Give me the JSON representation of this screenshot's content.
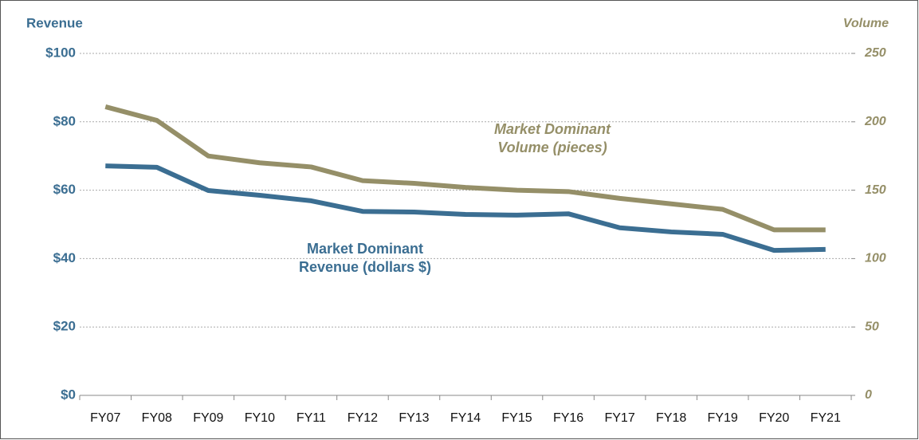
{
  "chart_data": {
    "type": "line",
    "y_label": "Revenue",
    "y2_label": "Volume",
    "categories": [
      "FY07",
      "FY08",
      "FY09",
      "FY10",
      "FY11",
      "FY12",
      "FY13",
      "FY14",
      "FY15",
      "FY16",
      "FY17",
      "FY18",
      "FY19",
      "FY20",
      "FY21"
    ],
    "series": [
      {
        "label_lines": [
          "Market Dominant",
          "Revenue (dollars $)"
        ],
        "color": "#3b6e92",
        "axis": "y",
        "values": [
          67.1,
          66.7,
          59.9,
          58.5,
          56.9,
          53.8,
          53.6,
          52.9,
          52.7,
          53.1,
          49.0,
          47.8,
          47.1,
          42.4,
          42.7
        ]
      },
      {
        "label_lines": [
          "Market Dominant",
          "Volume (pieces)"
        ],
        "color": "#958f68",
        "axis": "y2",
        "values": [
          211,
          201,
          175,
          170,
          167,
          157,
          155,
          152,
          150,
          149,
          144,
          140,
          136,
          121,
          121
        ]
      }
    ],
    "ylim": [
      0,
      100
    ],
    "yticks": [
      {
        "value": 0,
        "label": "$0"
      },
      {
        "value": 20,
        "label": "$20"
      },
      {
        "value": 40,
        "label": "$40"
      },
      {
        "value": 60,
        "label": "$60"
      },
      {
        "value": 80,
        "label": "$80"
      },
      {
        "value": 100,
        "label": "$100"
      }
    ],
    "y2lim": [
      0,
      250
    ],
    "y2ticks": [
      0,
      50,
      100,
      150,
      200,
      250
    ],
    "grid": true
  }
}
